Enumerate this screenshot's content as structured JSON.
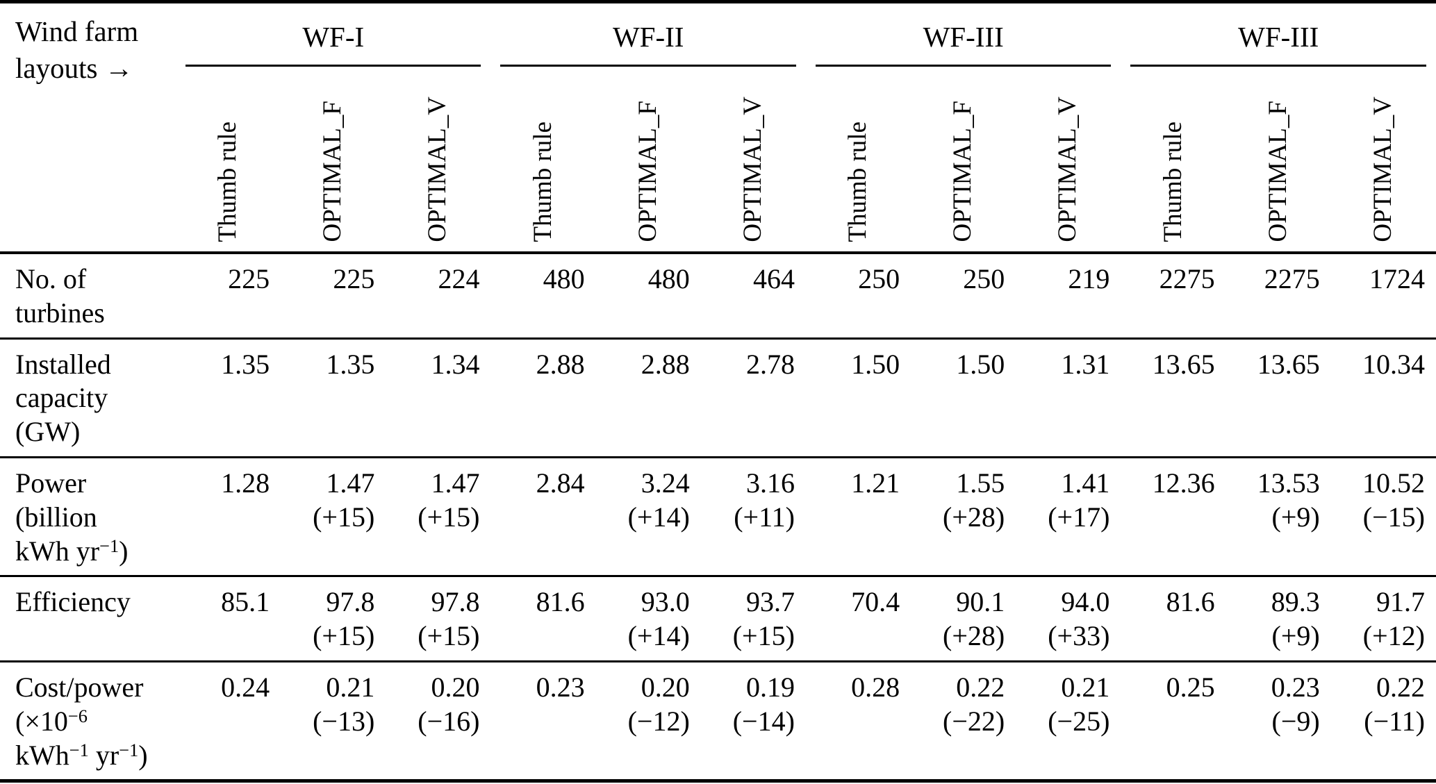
{
  "page": {
    "background": "#ffffff",
    "text_color": "#000000"
  },
  "table": {
    "corner_label_lines": [
      "Wind farm",
      "layouts →"
    ],
    "groups": [
      {
        "label": "WF-I"
      },
      {
        "label": "WF-II"
      },
      {
        "label": "WF-III"
      },
      {
        "label": "WF-III"
      }
    ],
    "sub_columns": [
      "Thumb rule",
      "OPTIMAL_F",
      "OPTIMAL_V"
    ],
    "rows": [
      {
        "name": "No. of turbines",
        "label_lines": [
          [
            {
              "t": "No. of"
            }
          ],
          [
            {
              "t": "turbines"
            }
          ]
        ],
        "cells": [
          {
            "v": "225"
          },
          {
            "v": "225"
          },
          {
            "v": "224"
          },
          {
            "v": "480"
          },
          {
            "v": "480"
          },
          {
            "v": "464"
          },
          {
            "v": "250"
          },
          {
            "v": "250"
          },
          {
            "v": "219"
          },
          {
            "v": "2275"
          },
          {
            "v": "2275"
          },
          {
            "v": "1724"
          }
        ]
      },
      {
        "name": "Installed capacity (GW)",
        "label_lines": [
          [
            {
              "t": "Installed"
            }
          ],
          [
            {
              "t": "capacity"
            }
          ],
          [
            {
              "t": "(GW)"
            }
          ]
        ],
        "cells": [
          {
            "v": "1.35"
          },
          {
            "v": "1.35"
          },
          {
            "v": "1.34"
          },
          {
            "v": "2.88"
          },
          {
            "v": "2.88"
          },
          {
            "v": "2.78"
          },
          {
            "v": "1.50"
          },
          {
            "v": "1.50"
          },
          {
            "v": "1.31"
          },
          {
            "v": "13.65"
          },
          {
            "v": "13.65"
          },
          {
            "v": "10.34"
          }
        ]
      },
      {
        "name": "Power (billion kWh yr-1)",
        "label_lines": [
          [
            {
              "t": "Power"
            }
          ],
          [
            {
              "t": "(billion"
            }
          ],
          [
            {
              "t": "kWh yr"
            },
            {
              "sup": "−1"
            },
            {
              "t": ")"
            }
          ]
        ],
        "cells": [
          {
            "v": "1.28"
          },
          {
            "v": "1.47",
            "d": "(+15)"
          },
          {
            "v": "1.47",
            "d": "(+15)"
          },
          {
            "v": "2.84"
          },
          {
            "v": "3.24",
            "d": "(+14)"
          },
          {
            "v": "3.16",
            "d": "(+11)"
          },
          {
            "v": "1.21"
          },
          {
            "v": "1.55",
            "d": "(+28)"
          },
          {
            "v": "1.41",
            "d": "(+17)"
          },
          {
            "v": "12.36"
          },
          {
            "v": "13.53",
            "d": "(+9)"
          },
          {
            "v": "10.52",
            "d": "(−15)"
          }
        ]
      },
      {
        "name": "Efficiency",
        "label_lines": [
          [
            {
              "t": "Efficiency"
            }
          ]
        ],
        "cells": [
          {
            "v": "85.1"
          },
          {
            "v": "97.8",
            "d": "(+15)"
          },
          {
            "v": "97.8",
            "d": "(+15)"
          },
          {
            "v": "81.6"
          },
          {
            "v": "93.0",
            "d": "(+14)"
          },
          {
            "v": "93.7",
            "d": "(+15)"
          },
          {
            "v": "70.4"
          },
          {
            "v": "90.1",
            "d": "(+28)"
          },
          {
            "v": "94.0",
            "d": "(+33)"
          },
          {
            "v": "81.6"
          },
          {
            "v": "89.3",
            "d": "(+9)"
          },
          {
            "v": "91.7",
            "d": "(+12)"
          }
        ]
      },
      {
        "name": "Cost/power (x10-6 kWh-1 yr-1)",
        "label_lines": [
          [
            {
              "t": "Cost/power"
            }
          ],
          [
            {
              "t": "(×10"
            },
            {
              "sup": "−6"
            }
          ],
          [
            {
              "t": "kWh"
            },
            {
              "sup": "−1"
            },
            {
              "t": " yr"
            },
            {
              "sup": "−1"
            },
            {
              "t": ")"
            }
          ]
        ],
        "cells": [
          {
            "v": "0.24"
          },
          {
            "v": "0.21",
            "d": "(−13)"
          },
          {
            "v": "0.20",
            "d": "(−16)"
          },
          {
            "v": "0.23"
          },
          {
            "v": "0.20",
            "d": "(−12)"
          },
          {
            "v": "0.19",
            "d": "(−14)"
          },
          {
            "v": "0.28"
          },
          {
            "v": "0.22",
            "d": "(−22)"
          },
          {
            "v": "0.21",
            "d": "(−25)"
          },
          {
            "v": "0.25"
          },
          {
            "v": "0.23",
            "d": "(−9)"
          },
          {
            "v": "0.22",
            "d": "(−11)"
          }
        ]
      }
    ]
  }
}
